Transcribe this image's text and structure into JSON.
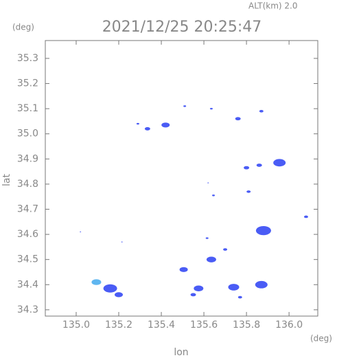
{
  "chart_data": {
    "type": "scatter",
    "title": "2021/12/25 20:25:47",
    "subtitle": "ALT(km) 2.0",
    "x_label": "lon",
    "y_label": "lat",
    "x_unit": "(deg)",
    "y_unit": "(deg)",
    "xlim": [
      134.855,
      136.135
    ],
    "ylim": [
      34.275,
      35.371
    ],
    "xticks": [
      {
        "value": 135,
        "label": "135.0"
      },
      135.2,
      135.4,
      135.6,
      135.8,
      {
        "value": 136,
        "label": "136.0"
      }
    ],
    "yticks": [
      34.3,
      34.4,
      34.5,
      34.6,
      34.7,
      34.8,
      34.9,
      {
        "value": 35,
        "label": "35.0"
      },
      35.1,
      35.2,
      35.3
    ],
    "series": [
      {
        "color": "#4a5cf5",
        "x": [
          135.42,
          135.335,
          135.29,
          135.51,
          135.635,
          135.76,
          135.87,
          135.955,
          135.86,
          135.8,
          135.62,
          135.645,
          135.81,
          135.88,
          136.08,
          135.02,
          135.215,
          135.615,
          135.7,
          135.635,
          135.505,
          135.575,
          135.55,
          135.74,
          135.77,
          135.87,
          135.16,
          135.2
        ],
        "values": [
          35.035,
          35.02,
          35.04,
          35.11,
          35.1,
          35.06,
          35.09,
          34.885,
          34.875,
          34.865,
          34.805,
          34.755,
          34.77,
          34.615,
          34.67,
          34.61,
          34.57,
          34.585,
          34.54,
          34.5,
          34.46,
          34.385,
          34.36,
          34.39,
          34.35,
          34.4,
          34.385,
          34.36
        ],
        "sizes": [
          6,
          4,
          2,
          2,
          2,
          4,
          3,
          9,
          4,
          4,
          1,
          2,
          3,
          11,
          3,
          1,
          1,
          2,
          3,
          7,
          6,
          7,
          4,
          8,
          3,
          9,
          10,
          6
        ]
      },
      {
        "color": "#5fb6f0",
        "x": [
          135.095
        ],
        "values": [
          34.41
        ],
        "sizes": [
          7
        ]
      }
    ]
  }
}
